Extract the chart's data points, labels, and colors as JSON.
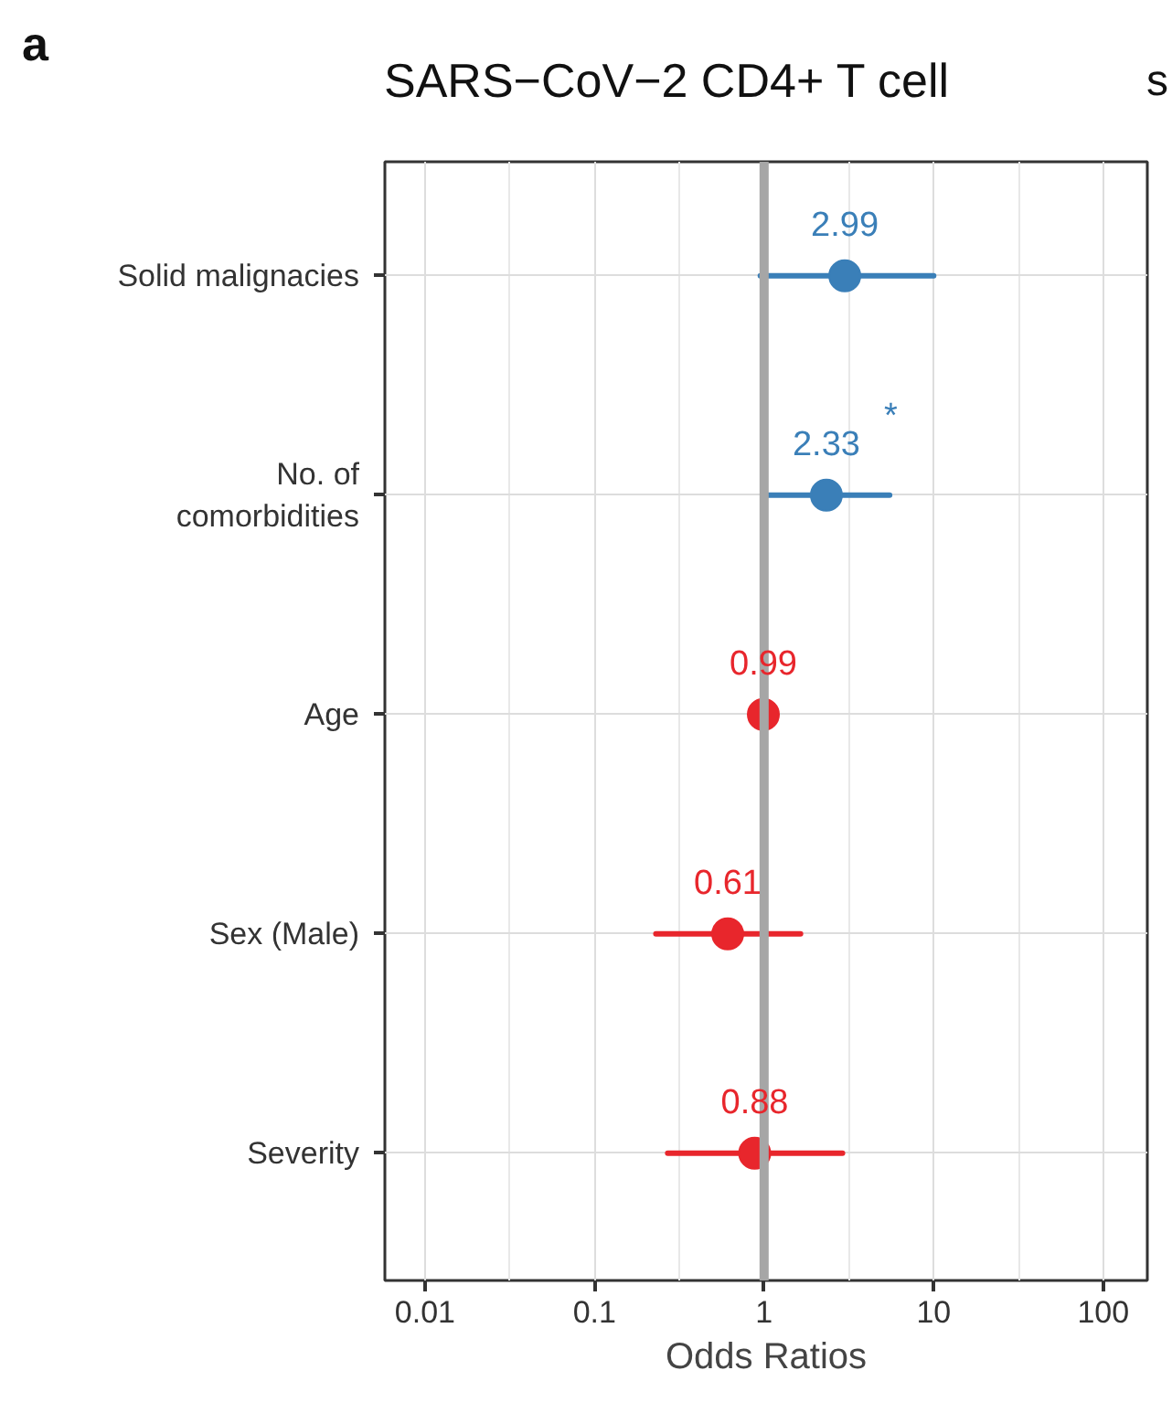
{
  "chart_data": {
    "type": "scatter",
    "title": "SARS−CoV−2 CD4+ T cell",
    "xlabel": "Odds Ratios",
    "categories": [
      "Solid malignacies",
      "No. of\ncomorbidities",
      "Age",
      "Sex (Male)",
      "Severity"
    ],
    "orientation": "horizontal",
    "values": [
      2.99,
      2.33,
      0.99,
      0.61,
      0.88
    ],
    "colors": [
      "#3a7fb8",
      "#3a7fb8",
      "#e8262c",
      "#e8262c",
      "#e8262c"
    ],
    "errors": [
      [
        0.95,
        10
      ],
      [
        1.05,
        5.5
      ],
      null,
      [
        0.23,
        1.64
      ],
      [
        0.27,
        2.9
      ]
    ],
    "data_labels": true,
    "log": "x",
    "xlim": [
      0.0058,
      182
    ],
    "xticks": [
      0.01,
      0.1,
      1,
      10,
      100
    ],
    "grid": true,
    "marker": "circle",
    "ref_lines": [
      {
        "axis": "x",
        "value": 1,
        "color": "#a6a6a6"
      }
    ],
    "annotations": [
      "a",
      "s",
      "*"
    ]
  }
}
